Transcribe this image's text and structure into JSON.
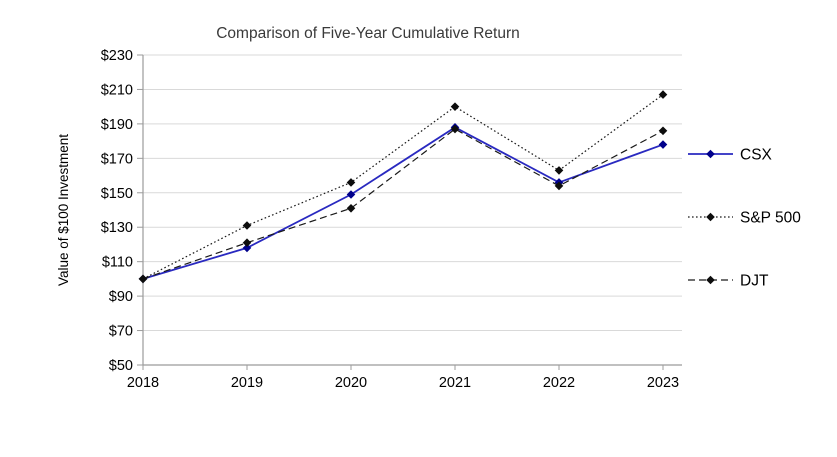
{
  "chart_data": {
    "type": "line",
    "title": "Comparison of Five-Year Cumulative Return",
    "ylabel": "Value of $100 Investment",
    "xlabel": "",
    "x_categories": [
      "2018",
      "2019",
      "2020",
      "2021",
      "2022",
      "2023"
    ],
    "ylim": [
      50,
      230
    ],
    "ytick_step": 20,
    "y_tick_prefix": "$",
    "grid": "horizontal-only",
    "legend_position": "right",
    "series": [
      {
        "name": "CSX",
        "values": [
          100,
          118,
          149,
          188,
          156,
          178
        ],
        "color": "#2929c0",
        "marker_color": "#00008b",
        "dash": "solid",
        "line_width": 1.8
      },
      {
        "name": "S&P 500",
        "values": [
          100,
          131,
          156,
          200,
          163,
          207
        ],
        "color": "#1a1a1a",
        "marker_color": "#0d0d0d",
        "dash": "dotted",
        "line_width": 1.2
      },
      {
        "name": "DJT",
        "values": [
          100,
          121,
          141,
          187,
          154,
          186
        ],
        "color": "#1a1a1a",
        "marker_color": "#0d0d0d",
        "dash": "dashed",
        "line_width": 1.2
      }
    ],
    "colors": {
      "axis": "#9b9b9b",
      "gridline": "#d9d9d9",
      "tick_text": "#000000",
      "title_text": "#3a3a3a",
      "background": "#ffffff"
    }
  }
}
